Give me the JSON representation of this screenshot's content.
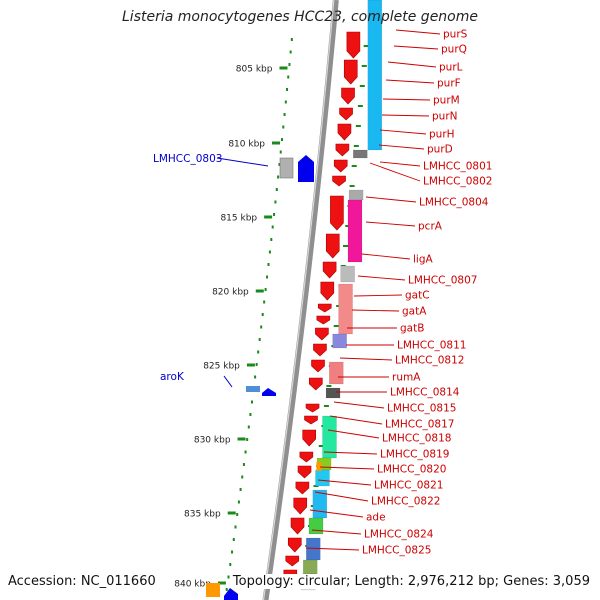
{
  "title": "Listeria monocytogenes HCC23, complete genome",
  "footer": {
    "accession": "Accession: NC_011660",
    "topology": "Topology: circular; Length: 2,976,212 bp; Genes: 3,059"
  },
  "colors": {
    "ruler": "#1a8a1a",
    "forward_label": "#0000cc",
    "reverse_label": "#cc0000",
    "backbone": "#9a9a9a"
  },
  "ruler_ticks": [
    "805 kbp",
    "810 kbp",
    "815 kbp",
    "820 kbp",
    "825 kbp",
    "830 kbp",
    "835 kbp",
    "840 kbp"
  ],
  "forward_genes": [
    {
      "name": "LMHCC_0803"
    },
    {
      "name": "aroK"
    }
  ],
  "reverse_genes": [
    {
      "name": "purS"
    },
    {
      "name": "purQ"
    },
    {
      "name": "purL"
    },
    {
      "name": "purF"
    },
    {
      "name": "purM"
    },
    {
      "name": "purN"
    },
    {
      "name": "purH"
    },
    {
      "name": "purD"
    },
    {
      "name": "LMHCC_0801"
    },
    {
      "name": "LMHCC_0802"
    },
    {
      "name": "LMHCC_0804"
    },
    {
      "name": "pcrA"
    },
    {
      "name": "ligA"
    },
    {
      "name": "LMHCC_0807"
    },
    {
      "name": "gatC"
    },
    {
      "name": "gatA"
    },
    {
      "name": "gatB"
    },
    {
      "name": "LMHCC_0811"
    },
    {
      "name": "LMHCC_0812"
    },
    {
      "name": "rumA"
    },
    {
      "name": "LMHCC_0814"
    },
    {
      "name": "LMHCC_0815"
    },
    {
      "name": "LMHCC_0817"
    },
    {
      "name": "LMHCC_0818"
    },
    {
      "name": "LMHCC_0819"
    },
    {
      "name": "LMHCC_0820"
    },
    {
      "name": "LMHCC_0821"
    },
    {
      "name": "LMHCC_0822"
    },
    {
      "name": "ade"
    },
    {
      "name": "LMHCC_0824"
    },
    {
      "name": "LMHCC_0825"
    }
  ]
}
